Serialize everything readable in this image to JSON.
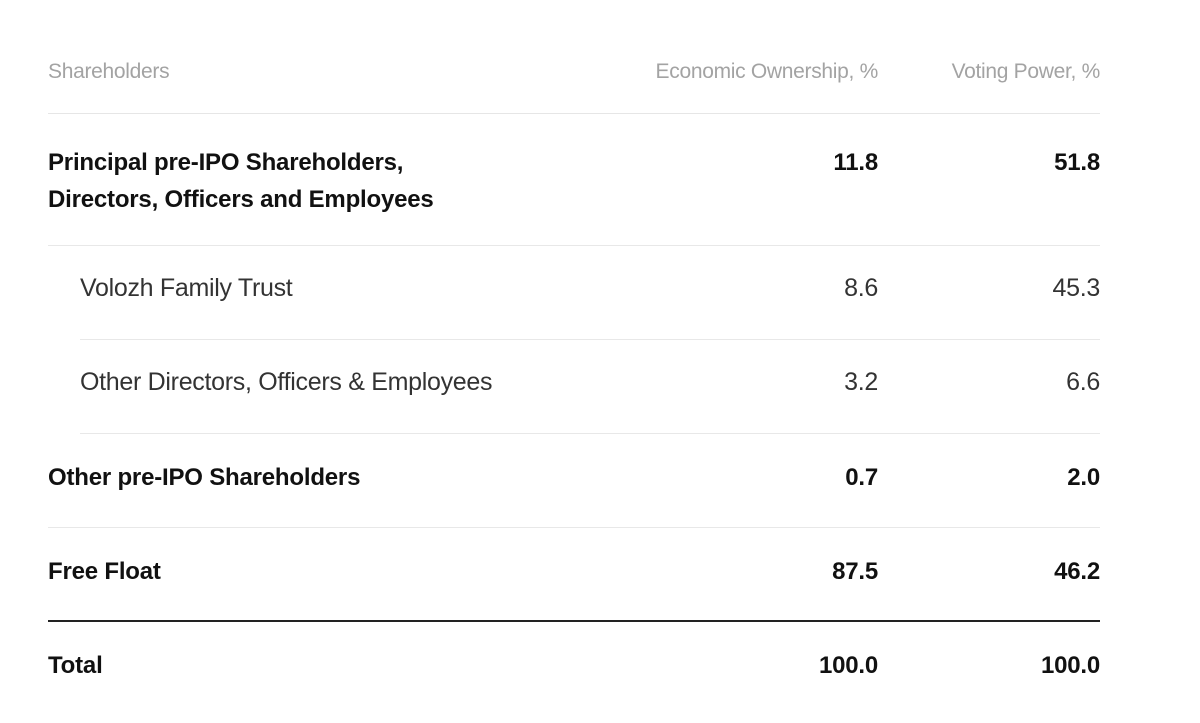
{
  "header": {
    "shareholders": "Shareholders",
    "economic": "Economic Ownership, %",
    "voting": "Voting Power, %"
  },
  "rows": [
    {
      "name_line1": "Principal pre-IPO Shareholders,",
      "name_line2": "Directors, Officers and Employees",
      "economic": "11.8",
      "voting": "51.8"
    },
    {
      "name": "Volozh Family Trust",
      "economic": "8.6",
      "voting": "45.3"
    },
    {
      "name": "Other Directors, Officers & Employees",
      "economic": "3.2",
      "voting": "6.6"
    },
    {
      "name": "Other pre-IPO Shareholders",
      "economic": "0.7",
      "voting": "2.0"
    },
    {
      "name": "Free Float",
      "economic": "87.5",
      "voting": "46.2"
    }
  ],
  "total": {
    "name": "Total",
    "economic": "100.0",
    "voting": "100.0"
  }
}
